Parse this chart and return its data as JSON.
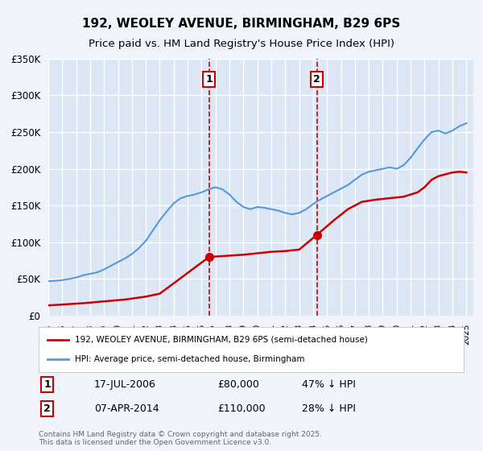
{
  "title_line1": "192, WEOLEY AVENUE, BIRMINGHAM, B29 6PS",
  "title_line2": "Price paid vs. HM Land Registry's House Price Index (HPI)",
  "ylabel": "",
  "background_color": "#f0f4fa",
  "plot_bg_color": "#dce6f5",
  "grid_color": "#ffffff",
  "red_line_color": "#cc0000",
  "blue_line_color": "#5599dd",
  "marker1_year": 2006.54,
  "marker2_year": 2014.27,
  "marker1_label": "1",
  "marker2_label": "2",
  "marker1_date": "17-JUL-2006",
  "marker1_price": "£80,000",
  "marker1_hpi": "47% ↓ HPI",
  "marker2_date": "07-APR-2014",
  "marker2_price": "£110,000",
  "marker2_hpi": "28% ↓ HPI",
  "legend_line1": "192, WEOLEY AVENUE, BIRMINGHAM, B29 6PS (semi-detached house)",
  "legend_line2": "HPI: Average price, semi-detached house, Birmingham",
  "footer": "Contains HM Land Registry data © Crown copyright and database right 2025.\nThis data is licensed under the Open Government Licence v3.0.",
  "ylim": [
    0,
    350000
  ],
  "xlim": [
    1995,
    2025.5
  ],
  "hpi_years": [
    1995,
    1995.5,
    1996,
    1996.5,
    1997,
    1997.5,
    1998,
    1998.5,
    1999,
    1999.5,
    2000,
    2000.5,
    2001,
    2001.5,
    2002,
    2002.5,
    2003,
    2003.5,
    2004,
    2004.5,
    2005,
    2005.5,
    2006,
    2006.5,
    2007,
    2007.5,
    2008,
    2008.5,
    2009,
    2009.5,
    2010,
    2010.5,
    2011,
    2011.5,
    2012,
    2012.5,
    2013,
    2013.5,
    2014,
    2014.5,
    2015,
    2015.5,
    2016,
    2016.5,
    2017,
    2017.5,
    2018,
    2018.5,
    2019,
    2019.5,
    2020,
    2020.5,
    2021,
    2021.5,
    2022,
    2022.5,
    2023,
    2023.5,
    2024,
    2024.5,
    2025
  ],
  "hpi_values": [
    47000,
    47500,
    48500,
    50000,
    52000,
    55000,
    57000,
    59000,
    63000,
    68000,
    73000,
    78000,
    84000,
    92000,
    102000,
    116000,
    130000,
    142000,
    153000,
    160000,
    163000,
    165000,
    168000,
    172000,
    175000,
    172000,
    165000,
    155000,
    148000,
    145000,
    148000,
    147000,
    145000,
    143000,
    140000,
    138000,
    140000,
    145000,
    152000,
    158000,
    163000,
    168000,
    173000,
    178000,
    185000,
    192000,
    196000,
    198000,
    200000,
    202000,
    200000,
    205000,
    215000,
    228000,
    240000,
    250000,
    252000,
    248000,
    252000,
    258000,
    262000
  ],
  "price_years": [
    1995.0,
    1997.5,
    2000.5,
    2002.0,
    2003.0,
    2006.54,
    2006.54,
    2009.0,
    2010.0,
    2011.0,
    2012.0,
    2013.0,
    2014.27,
    2014.27,
    2015.5,
    2016.5,
    2017.5,
    2018.5,
    2019.5,
    2020.5,
    2021.5,
    2022.0,
    2022.5,
    2023.0,
    2024.0,
    2024.5,
    2025.0
  ],
  "price_values": [
    14000,
    17000,
    22000,
    26000,
    30000,
    80000,
    80000,
    83000,
    85000,
    87000,
    88000,
    90000,
    110000,
    110000,
    130000,
    145000,
    155000,
    158000,
    160000,
    162000,
    168000,
    175000,
    185000,
    190000,
    195000,
    196000,
    195000
  ],
  "marker1_price_val": 80000,
  "marker2_price_val": 110000
}
